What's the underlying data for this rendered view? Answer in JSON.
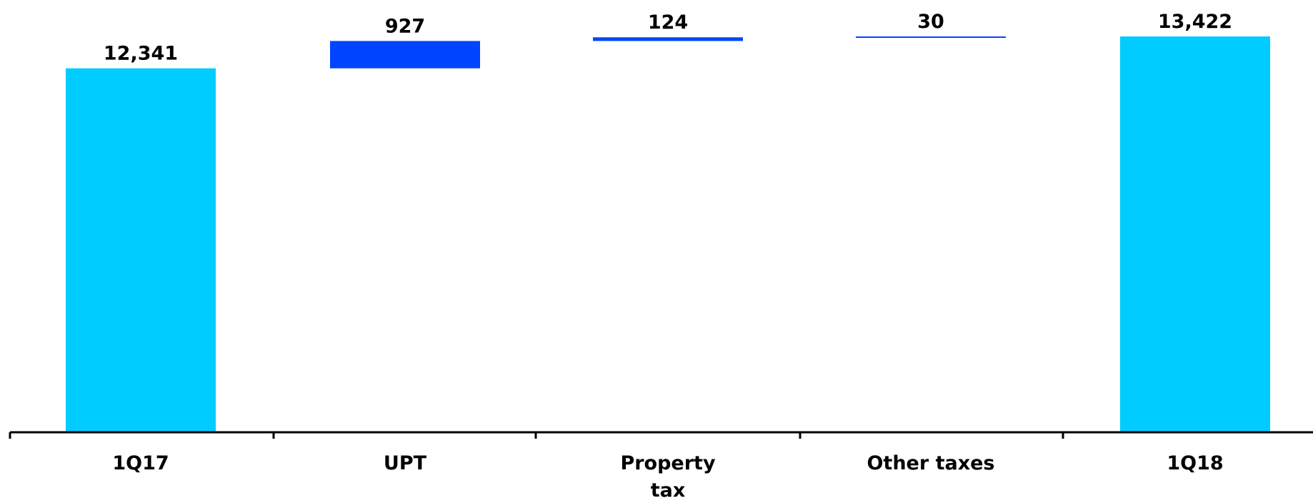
{
  "chart_data": {
    "type": "waterfall",
    "categories": [
      "1Q17",
      "UPT",
      "Property tax",
      "Other taxes",
      "1Q18"
    ],
    "category_lines": [
      [
        "1Q17"
      ],
      [
        "UPT"
      ],
      [
        "Property",
        "tax"
      ],
      [
        "Other taxes"
      ],
      [
        "1Q18"
      ]
    ],
    "values": [
      12341,
      927,
      124,
      30,
      13422
    ],
    "value_labels": [
      "12,341",
      "927",
      "124",
      "30",
      "13,422"
    ],
    "bar_kinds": [
      "total",
      "increase",
      "increase",
      "increase",
      "total"
    ],
    "title": "",
    "xlabel": "",
    "ylabel": "",
    "ylim": [
      0,
      13422
    ],
    "grid": false,
    "legend": "none",
    "colors": {
      "total": "#00CCFF",
      "increase": "#0044FF",
      "axis": "#000000"
    }
  }
}
